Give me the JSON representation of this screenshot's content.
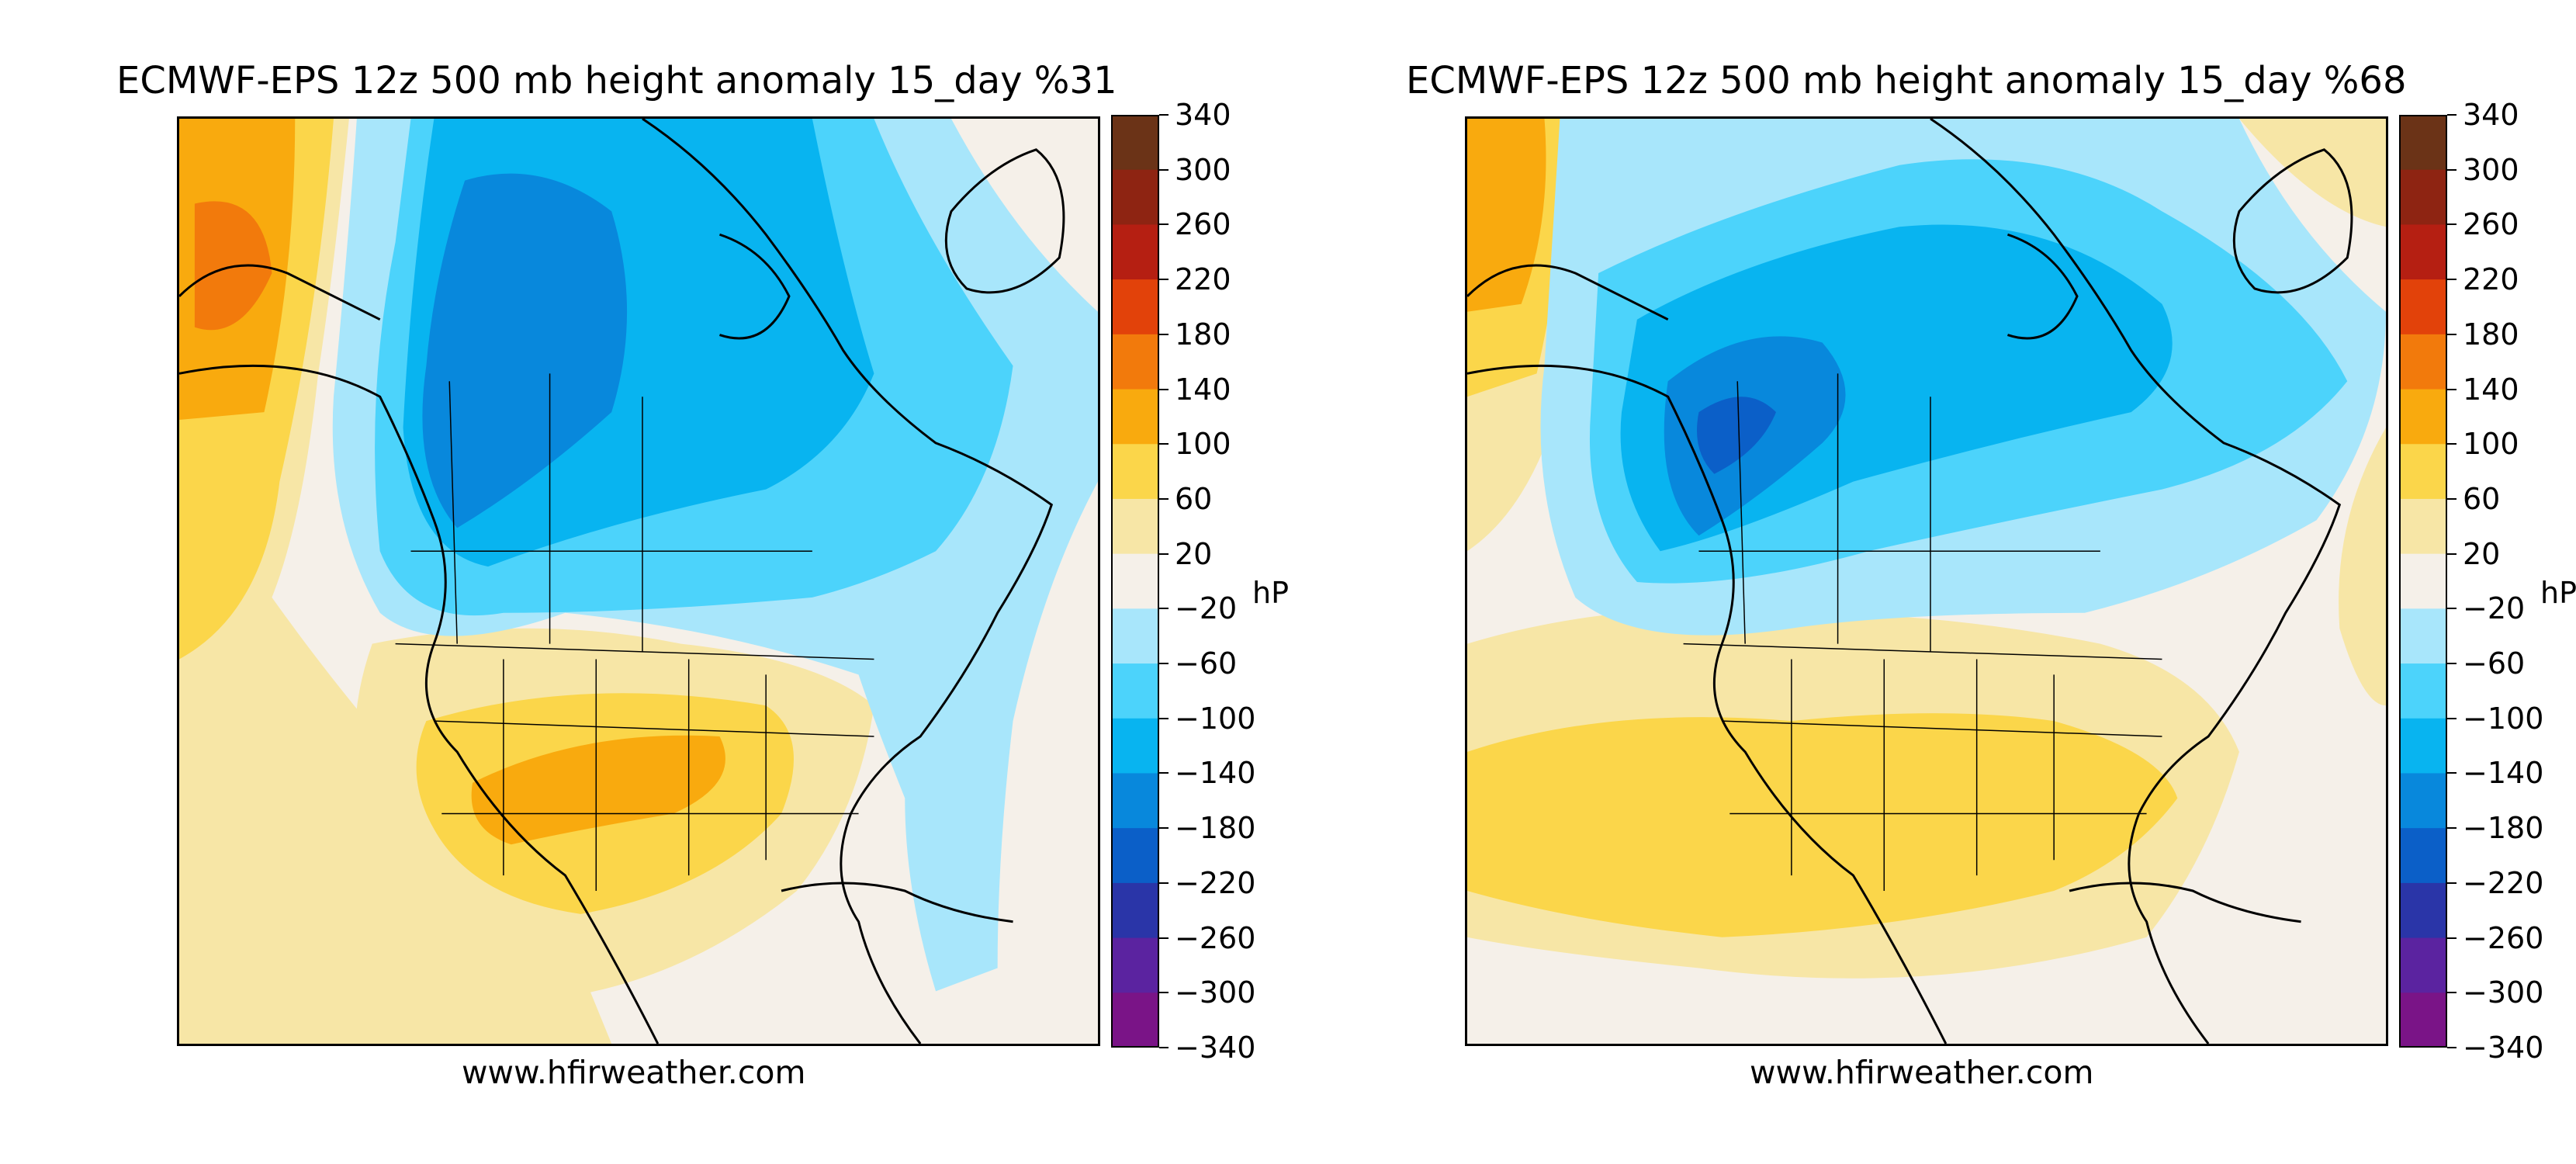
{
  "panels": [
    {
      "title": "ECMWF-EPS 12z 500 mb height anomaly 15_day %31",
      "credit": "www.hfirweather.com"
    },
    {
      "title": "ECMWF-EPS 12z 500 mb height anomaly 15_day %68",
      "credit": "www.hfirweather.com"
    }
  ],
  "colorbar": {
    "unit_label": "hP",
    "ticks": [
      "340",
      "300",
      "260",
      "220",
      "180",
      "140",
      "100",
      "60",
      "20",
      "−20",
      "−60",
      "−100",
      "−140",
      "−180",
      "−220",
      "−260",
      "−300",
      "−340"
    ],
    "colors_top_to_bottom": [
      "#6b3317",
      "#8e2412",
      "#b51f12",
      "#e2420a",
      "#f27a0c",
      "#f9aa0e",
      "#fbd64a",
      "#f7e6a6",
      "#f5f0e9",
      "#a8e6fb",
      "#4cd3fb",
      "#08b4f0",
      "#0888dc",
      "#0b5fc8",
      "#2a35a8",
      "#5b23a0",
      "#7a1487"
    ]
  },
  "map_labels": {
    "projection_region": "North America"
  }
}
